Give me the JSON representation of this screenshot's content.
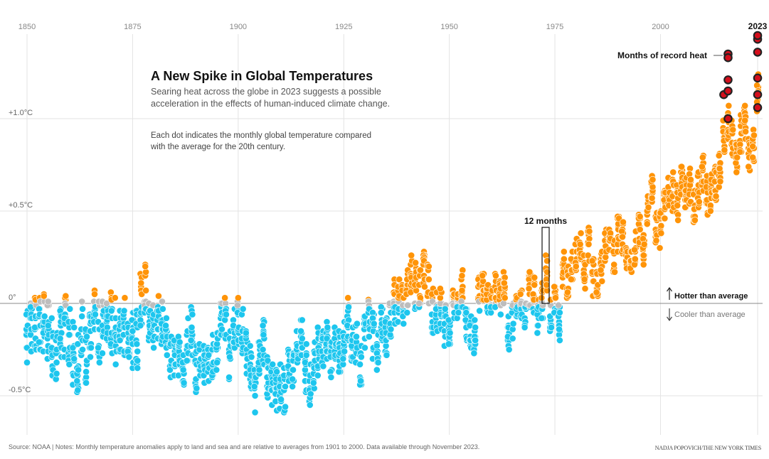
{
  "chart_data": {
    "type": "scatter",
    "title": "A New Spike in Global Temperatures",
    "subtitle": "Searing heat across the globe in 2023 suggests a possible acceleration in the effects of human-induced climate change.",
    "description_note": "Each dot indicates the monthly global temperature compared with the average for the 20th century.",
    "x_ticks": [
      "1850",
      "1875",
      "1900",
      "1925",
      "1950",
      "1975",
      "2000",
      "2023"
    ],
    "x_tick_values": [
      1850,
      1875,
      1900,
      1925,
      1950,
      1975,
      2000,
      2023
    ],
    "y_ticks": [
      {
        "value": 1.0,
        "label": "+1.0°C"
      },
      {
        "value": 0.5,
        "label": "+0.5°C"
      },
      {
        "value": 0,
        "label": "0°"
      },
      {
        "value": -0.5,
        "label": "-0.5°C"
      }
    ],
    "xlim": [
      1850,
      2023
    ],
    "ylim": [
      -0.7,
      1.5
    ],
    "grid": true,
    "colors": {
      "warm": "#ff9408",
      "cool": "#1dc6ee",
      "neutral": "#bdbdbd",
      "record": "#d40f1c",
      "record_outline": "#222222"
    },
    "annual_mean_anomaly_start_year": 1850,
    "annual_mean_anomaly": [
      -0.15,
      -0.12,
      -0.1,
      -0.12,
      -0.1,
      -0.15,
      -0.25,
      -0.3,
      -0.15,
      -0.12,
      -0.2,
      -0.25,
      -0.35,
      -0.15,
      -0.3,
      -0.15,
      -0.1,
      -0.15,
      -0.15,
      -0.1,
      -0.1,
      -0.15,
      -0.12,
      -0.15,
      -0.2,
      -0.2,
      -0.2,
      0.0,
      0.08,
      -0.1,
      -0.15,
      -0.1,
      -0.12,
      -0.2,
      -0.3,
      -0.3,
      -0.3,
      -0.35,
      -0.2,
      -0.15,
      -0.35,
      -0.3,
      -0.35,
      -0.35,
      -0.3,
      -0.25,
      -0.1,
      -0.1,
      -0.3,
      -0.15,
      -0.1,
      -0.15,
      -0.25,
      -0.35,
      -0.45,
      -0.3,
      -0.2,
      -0.4,
      -0.45,
      -0.48,
      -0.45,
      -0.48,
      -0.35,
      -0.35,
      -0.2,
      -0.15,
      -0.35,
      -0.45,
      -0.35,
      -0.25,
      -0.25,
      -0.2,
      -0.3,
      -0.25,
      -0.25,
      -0.2,
      -0.1,
      -0.2,
      -0.2,
      -0.35,
      -0.15,
      -0.1,
      -0.15,
      -0.25,
      -0.1,
      -0.15,
      -0.1,
      0.0,
      0.02,
      0.0,
      0.08,
      0.15,
      0.1,
      0.1,
      0.2,
      0.1,
      -0.05,
      -0.05,
      -0.05,
      -0.1,
      -0.15,
      -0.02,
      0.0,
      0.08,
      -0.1,
      -0.15,
      -0.2,
      0.05,
      0.08,
      0.03,
      0.0,
      0.05,
      0.05,
      0.08,
      -0.15,
      -0.08,
      -0.03,
      0.0,
      -0.05,
      0.08,
      0.03,
      -0.08,
      0.02,
      0.15,
      -0.08,
      0.0,
      -0.1,
      0.18,
      0.1,
      0.2,
      0.25,
      0.3,
      0.15,
      0.32,
      0.15,
      0.12,
      0.2,
      0.32,
      0.35,
      0.25,
      0.4,
      0.38,
      0.22,
      0.25,
      0.3,
      0.42,
      0.32,
      0.5,
      0.62,
      0.4,
      0.4,
      0.52,
      0.6,
      0.6,
      0.55,
      0.65,
      0.62,
      0.62,
      0.52,
      0.62,
      0.7,
      0.57,
      0.6,
      0.65,
      0.72,
      0.9,
      0.98,
      0.88,
      0.8,
      0.92,
      0.97,
      0.8,
      0.85,
      1.15
    ],
    "record_months": [
      {
        "year": 2016,
        "month": 1,
        "value": 1.13
      },
      {
        "year": 2016,
        "month": 2,
        "value": 1.35
      },
      {
        "year": 2016,
        "month": 3,
        "value": 1.33
      },
      {
        "year": 2016,
        "month": 4,
        "value": 1.15
      },
      {
        "year": 2016,
        "month": 5,
        "value": 1.21
      },
      {
        "year": 2016,
        "month": 6,
        "value": 1.0
      },
      {
        "year": 2023,
        "month": 6,
        "value": 1.06
      },
      {
        "year": 2023,
        "month": 7,
        "value": 1.13
      },
      {
        "year": 2023,
        "month": 8,
        "value": 1.22
      },
      {
        "year": 2023,
        "month": 9,
        "value": 1.36
      },
      {
        "year": 2023,
        "month": 10,
        "value": 1.43
      },
      {
        "year": 2023,
        "month": 11,
        "value": 1.45
      }
    ],
    "annotations": {
      "record": "Months of record heat",
      "twelve_months": "12 months",
      "hotter": "Hotter than average",
      "cooler": "Cooler than average"
    }
  },
  "footer": {
    "source": "Source: NOAA | Notes: Monthly temperature anomalies apply to land and sea and are relative to averages from 1901 to 2000. Data available through November 2023.",
    "credit": "NADJA POPOVICH/THE NEW YORK TIMES"
  }
}
